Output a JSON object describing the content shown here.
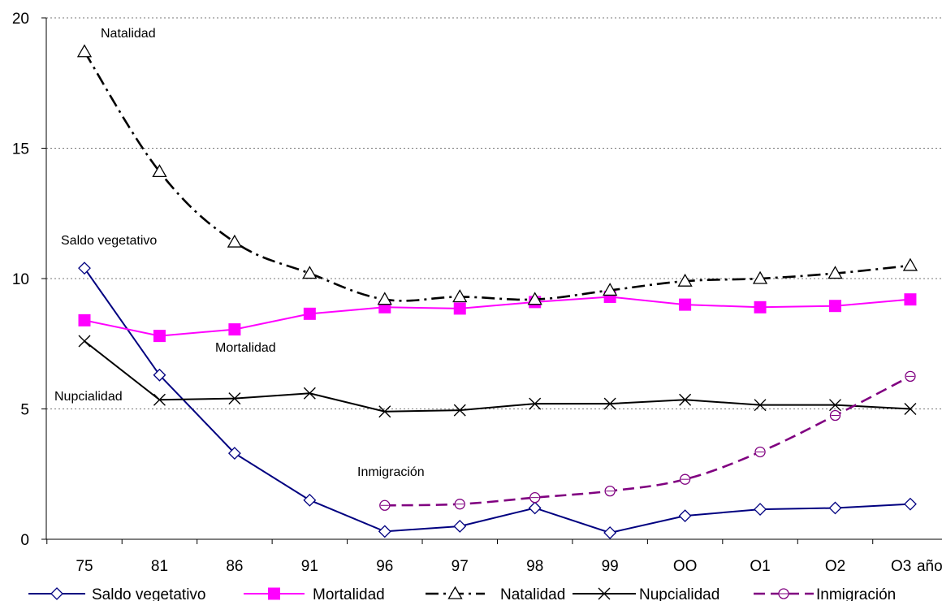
{
  "chart_data": {
    "type": "line",
    "categories": [
      "75",
      "81",
      "86",
      "91",
      "96",
      "97",
      "98",
      "99",
      "OO",
      "O1",
      "O2",
      "O3"
    ],
    "x_unit": "años",
    "ylim": [
      0,
      20
    ],
    "yticks": [
      0,
      5,
      10,
      15,
      20
    ],
    "grid": true,
    "legend_position": "bottom",
    "series": [
      {
        "name": "Saldo vegetativo",
        "color": "#000080",
        "marker": "diamond",
        "values": [
          10.4,
          6.3,
          3.3,
          1.5,
          0.3,
          0.5,
          1.2,
          0.25,
          0.9,
          1.15,
          1.2,
          1.35
        ]
      },
      {
        "name": "Mortalidad",
        "color": "#ff00ff",
        "marker": "square",
        "values": [
          8.4,
          7.8,
          8.05,
          8.65,
          8.9,
          8.85,
          9.1,
          9.3,
          9.0,
          8.9,
          8.95,
          9.2
        ]
      },
      {
        "name": "Natalidad",
        "color": "#000000",
        "marker": "triangle",
        "dash": "dashdot",
        "values": [
          18.7,
          14.1,
          11.4,
          10.2,
          9.2,
          9.3,
          9.2,
          9.55,
          9.9,
          10.0,
          10.2,
          10.5
        ]
      },
      {
        "name": "Nupcialidad",
        "color": "#000000",
        "marker": "x",
        "values": [
          7.6,
          5.35,
          5.4,
          5.6,
          4.9,
          4.95,
          5.2,
          5.2,
          5.35,
          5.15,
          5.15,
          5.0
        ]
      },
      {
        "name": "Inmigración",
        "color": "#800080",
        "marker": "circle",
        "dash": "dashed",
        "values": [
          null,
          null,
          null,
          null,
          1.3,
          1.35,
          1.6,
          1.85,
          2.3,
          3.35,
          4.75,
          6.25
        ]
      }
    ],
    "annotations": [
      "Natalidad",
      "Saldo vegetativo",
      "Mortalidad",
      "Nupcialidad",
      "Inmigración"
    ]
  }
}
